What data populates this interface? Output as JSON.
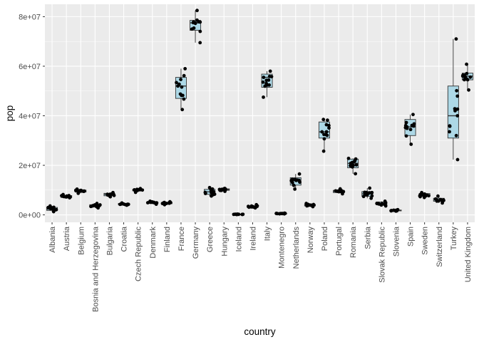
{
  "chart_data": {
    "type": "boxplot",
    "xlabel": "country",
    "ylabel": "pop",
    "ylim": [
      -3000000,
      85000000
    ],
    "y_ticks": [
      {
        "value": 0,
        "label": "0e+00"
      },
      {
        "value": 20000000,
        "label": "2e+07"
      },
      {
        "value": 40000000,
        "label": "4e+07"
      },
      {
        "value": 60000000,
        "label": "6e+07"
      },
      {
        "value": 80000000,
        "label": "8e+07"
      }
    ],
    "categories": [
      {
        "name": "Albania",
        "q1": 1800000,
        "median": 2300000,
        "q3": 3000000,
        "lo": 1300000,
        "hi": 3600000
      },
      {
        "name": "Austria",
        "q1": 7000000,
        "median": 7500000,
        "q3": 7800000,
        "lo": 6900000,
        "hi": 8200000
      },
      {
        "name": "Belgium",
        "q1": 9200000,
        "median": 9600000,
        "q3": 10000000,
        "lo": 8700000,
        "hi": 10400000
      },
      {
        "name": "Bosnia and Herzegovina",
        "q1": 3200000,
        "median": 3700000,
        "q3": 4100000,
        "lo": 2800000,
        "hi": 4600000
      },
      {
        "name": "Bulgaria",
        "q1": 7700000,
        "median": 8300000,
        "q3": 8700000,
        "lo": 7300000,
        "hi": 9000000
      },
      {
        "name": "Croatia",
        "q1": 4100000,
        "median": 4400000,
        "q3": 4600000,
        "lo": 3900000,
        "hi": 4800000
      },
      {
        "name": "Czech Republic",
        "q1": 9700000,
        "median": 10000000,
        "q3": 10300000,
        "lo": 9100000,
        "hi": 10600000
      },
      {
        "name": "Denmark",
        "q1": 4600000,
        "median": 4900000,
        "q3": 5200000,
        "lo": 4300000,
        "hi": 5500000
      },
      {
        "name": "Finland",
        "q1": 4500000,
        "median": 4700000,
        "q3": 5000000,
        "lo": 4100000,
        "hi": 5300000
      },
      {
        "name": "France",
        "q1": 47000000,
        "median": 52000000,
        "q3": 55500000,
        "lo": 42500000,
        "hi": 59000000
      },
      {
        "name": "Germany",
        "q1": 74500000,
        "median": 77500000,
        "q3": 78500000,
        "lo": 69500000,
        "hi": 82500000
      },
      {
        "name": "Greece",
        "q1": 8300000,
        "median": 9300000,
        "q3": 10300000,
        "lo": 7600000,
        "hi": 11000000
      },
      {
        "name": "Hungary",
        "q1": 9900000,
        "median": 10200000,
        "q3": 10500000,
        "lo": 9500000,
        "hi": 10700000
      },
      {
        "name": "Iceland",
        "q1": 170000,
        "median": 220000,
        "q3": 260000,
        "lo": 150000,
        "hi": 300000
      },
      {
        "name": "Ireland",
        "q1": 2900000,
        "median": 3200000,
        "q3": 3600000,
        "lo": 2800000,
        "hi": 4100000
      },
      {
        "name": "Italy",
        "q1": 51500000,
        "median": 55500000,
        "q3": 56800000,
        "lo": 47500000,
        "hi": 58000000
      },
      {
        "name": "Montenegro",
        "q1": 450000,
        "median": 550000,
        "q3": 600000,
        "lo": 400000,
        "hi": 700000
      },
      {
        "name": "Netherlands",
        "q1": 12000000,
        "median": 13800000,
        "q3": 15000000,
        "lo": 10400000,
        "hi": 16500000
      },
      {
        "name": "Norway",
        "q1": 3600000,
        "median": 3900000,
        "q3": 4200000,
        "lo": 3300000,
        "hi": 4600000
      },
      {
        "name": "Poland",
        "q1": 31000000,
        "median": 33500000,
        "q3": 37500000,
        "lo": 25700000,
        "hi": 38500000
      },
      {
        "name": "Portugal",
        "q1": 9000000,
        "median": 9500000,
        "q3": 9900000,
        "lo": 8500000,
        "hi": 10500000
      },
      {
        "name": "Romania",
        "q1": 19000000,
        "median": 20800000,
        "q3": 22500000,
        "lo": 16600000,
        "hi": 22800000
      },
      {
        "name": "Serbia",
        "q1": 7500000,
        "median": 8500000,
        "q3": 9400000,
        "lo": 6700000,
        "hi": 10800000
      },
      {
        "name": "Slovak Republic",
        "q1": 4100000,
        "median": 4700000,
        "q3": 5200000,
        "lo": 3600000,
        "hi": 5500000
      },
      {
        "name": "Slovenia",
        "q1": 1600000,
        "median": 1800000,
        "q3": 1950000,
        "lo": 1500000,
        "hi": 2100000
      },
      {
        "name": "Spain",
        "q1": 32000000,
        "median": 35500000,
        "q3": 38500000,
        "lo": 28500000,
        "hi": 40500000
      },
      {
        "name": "Sweden",
        "q1": 7500000,
        "median": 8000000,
        "q3": 8600000,
        "lo": 7000000,
        "hi": 9000000
      },
      {
        "name": "Switzerland",
        "q1": 5500000,
        "median": 6000000,
        "q3": 6700000,
        "lo": 4800000,
        "hi": 7600000
      },
      {
        "name": "Turkey",
        "q1": 31000000,
        "median": 40000000,
        "q3": 52000000,
        "lo": 22300000,
        "hi": 71000000
      },
      {
        "name": "United Kingdom",
        "q1": 54500000,
        "median": 56000000,
        "q3": 57200000,
        "lo": 50400000,
        "hi": 60800000
      }
    ],
    "box_fill": "#add8e6",
    "panel_bg": "#ebebeb",
    "grid": true,
    "legend": "none"
  }
}
